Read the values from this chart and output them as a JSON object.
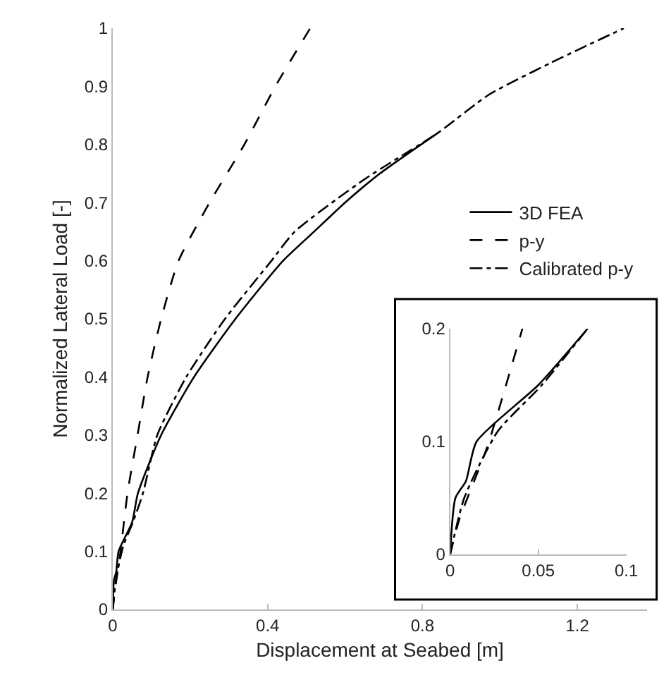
{
  "chart_data": [
    {
      "type": "line",
      "xlabel": "Displacement at Seabed [m]",
      "ylabel": "Normalized Lateral Load [-]",
      "xlim": [
        0,
        1.38
      ],
      "ylim": [
        0,
        1
      ],
      "xticks": [
        0,
        0.4,
        0.8,
        1.2
      ],
      "yticks": [
        0,
        0.1,
        0.2,
        0.3,
        0.4,
        0.5,
        0.6,
        0.7,
        0.8,
        0.9,
        1
      ],
      "grid": false,
      "legend": "right",
      "marker": "none",
      "series": [
        {
          "name": "3D FEA",
          "color": "#000000",
          "line_style": "solid",
          "x": [
            0,
            0.003,
            0.009,
            0.015,
            0.05,
            0.065,
            0.125,
            0.21,
            0.317,
            0.44,
            0.52,
            0.6,
            0.69,
            0.84
          ],
          "values": [
            0,
            0.05,
            0.065,
            0.1,
            0.15,
            0.2,
            0.3,
            0.4,
            0.5,
            0.6,
            0.65,
            0.7,
            0.75,
            0.82
          ]
        },
        {
          "name": "p-y",
          "color": "#000000",
          "line_style": "dashed",
          "x": [
            0,
            0.005,
            0.02,
            0.038,
            0.064,
            0.09,
            0.125,
            0.17,
            0.25,
            0.34,
            0.42,
            0.51
          ],
          "values": [
            0,
            0.03,
            0.1,
            0.2,
            0.3,
            0.4,
            0.5,
            0.6,
            0.7,
            0.8,
            0.9,
            1
          ]
        },
        {
          "name": "Calibrated p-y",
          "color": "#000000",
          "line_style": "dashdot",
          "x": [
            0,
            0.008,
            0.027,
            0.052,
            0.078,
            0.115,
            0.19,
            0.29,
            0.41,
            0.47,
            0.65,
            0.84,
            0.97,
            1.13,
            1.32
          ],
          "values": [
            0,
            0.05,
            0.109,
            0.15,
            0.2,
            0.3,
            0.4,
            0.5,
            0.6,
            0.65,
            0.74,
            0.82,
            0.885,
            0.94,
            1
          ]
        }
      ]
    },
    {
      "type": "line",
      "xlim": [
        0,
        0.1
      ],
      "ylim": [
        0,
        0.2
      ],
      "xticks": [
        0,
        0.05,
        0.1
      ],
      "yticks": [
        0,
        0.1,
        0.2
      ],
      "grid": false,
      "legend": false,
      "marker": "none",
      "series": [
        {
          "color": "#000000",
          "line_style": "solid",
          "x": [
            0,
            0.003,
            0.009,
            0.015,
            0.05,
            0.078
          ],
          "values": [
            0,
            0.05,
            0.065,
            0.1,
            0.15,
            0.2
          ]
        },
        {
          "color": "#000000",
          "line_style": "dashed",
          "x": [
            0,
            0.005,
            0.021,
            0.041
          ],
          "values": [
            0,
            0.03,
            0.095,
            0.2
          ]
        },
        {
          "color": "#000000",
          "line_style": "dashdot",
          "x": [
            0,
            0.008,
            0.027,
            0.052,
            0.078
          ],
          "values": [
            0,
            0.05,
            0.109,
            0.15,
            0.2
          ]
        }
      ]
    }
  ]
}
